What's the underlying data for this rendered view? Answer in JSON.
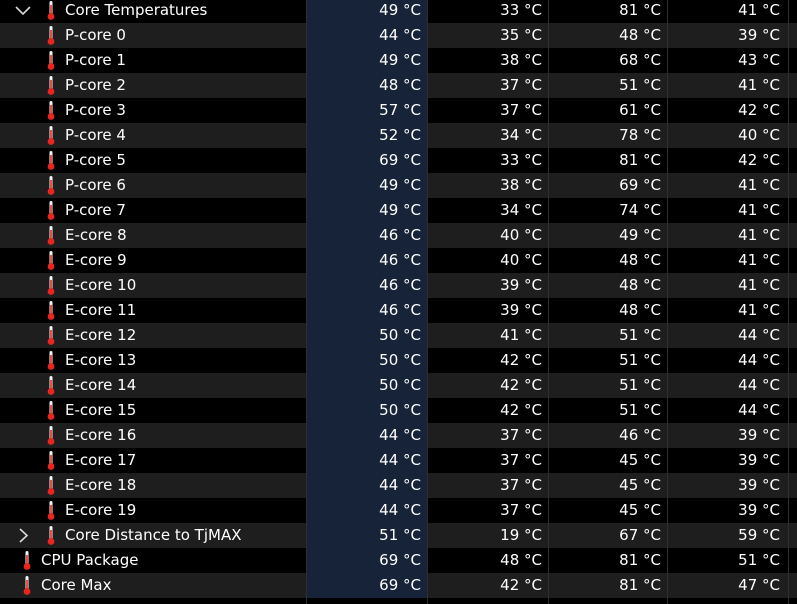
{
  "colors": {
    "row_dark": "#000000",
    "row_light": "#1e1e1e",
    "current_column": "#172338",
    "text": "#ffffff",
    "thermometer": "#e8251f"
  },
  "rows": [
    {
      "label": "Core Temperatures",
      "current": "49 °C",
      "min": "33 °C",
      "max": "81 °C",
      "avg": "41 °C",
      "expander": "chevron-down-icon",
      "level": 1
    },
    {
      "label": "P-core 0",
      "current": "44 °C",
      "min": "35 °C",
      "max": "48 °C",
      "avg": "39 °C",
      "level": 2
    },
    {
      "label": "P-core 1",
      "current": "49 °C",
      "min": "38 °C",
      "max": "68 °C",
      "avg": "43 °C",
      "level": 2
    },
    {
      "label": "P-core 2",
      "current": "48 °C",
      "min": "37 °C",
      "max": "51 °C",
      "avg": "41 °C",
      "level": 2
    },
    {
      "label": "P-core 3",
      "current": "57 °C",
      "min": "37 °C",
      "max": "61 °C",
      "avg": "42 °C",
      "level": 2
    },
    {
      "label": "P-core 4",
      "current": "52 °C",
      "min": "34 °C",
      "max": "78 °C",
      "avg": "40 °C",
      "level": 2
    },
    {
      "label": "P-core 5",
      "current": "69 °C",
      "min": "33 °C",
      "max": "81 °C",
      "avg": "42 °C",
      "level": 2
    },
    {
      "label": "P-core 6",
      "current": "49 °C",
      "min": "38 °C",
      "max": "69 °C",
      "avg": "41 °C",
      "level": 2
    },
    {
      "label": "P-core 7",
      "current": "49 °C",
      "min": "34 °C",
      "max": "74 °C",
      "avg": "41 °C",
      "level": 2
    },
    {
      "label": "E-core 8",
      "current": "46 °C",
      "min": "40 °C",
      "max": "49 °C",
      "avg": "41 °C",
      "level": 2
    },
    {
      "label": "E-core 9",
      "current": "46 °C",
      "min": "40 °C",
      "max": "48 °C",
      "avg": "41 °C",
      "level": 2
    },
    {
      "label": "E-core 10",
      "current": "46 °C",
      "min": "39 °C",
      "max": "48 °C",
      "avg": "41 °C",
      "level": 2
    },
    {
      "label": "E-core 11",
      "current": "46 °C",
      "min": "39 °C",
      "max": "48 °C",
      "avg": "41 °C",
      "level": 2
    },
    {
      "label": "E-core 12",
      "current": "50 °C",
      "min": "41 °C",
      "max": "51 °C",
      "avg": "44 °C",
      "level": 2
    },
    {
      "label": "E-core 13",
      "current": "50 °C",
      "min": "42 °C",
      "max": "51 °C",
      "avg": "44 °C",
      "level": 2
    },
    {
      "label": "E-core 14",
      "current": "50 °C",
      "min": "42 °C",
      "max": "51 °C",
      "avg": "44 °C",
      "level": 2
    },
    {
      "label": "E-core 15",
      "current": "50 °C",
      "min": "42 °C",
      "max": "51 °C",
      "avg": "44 °C",
      "level": 2
    },
    {
      "label": "E-core 16",
      "current": "44 °C",
      "min": "37 °C",
      "max": "46 °C",
      "avg": "39 °C",
      "level": 2
    },
    {
      "label": "E-core 17",
      "current": "44 °C",
      "min": "37 °C",
      "max": "45 °C",
      "avg": "39 °C",
      "level": 2
    },
    {
      "label": "E-core 18",
      "current": "44 °C",
      "min": "37 °C",
      "max": "45 °C",
      "avg": "39 °C",
      "level": 2
    },
    {
      "label": "E-core 19",
      "current": "44 °C",
      "min": "37 °C",
      "max": "45 °C",
      "avg": "39 °C",
      "level": 2
    },
    {
      "label": "Core Distance to TjMAX",
      "current": "51 °C",
      "min": "19 °C",
      "max": "67 °C",
      "avg": "59 °C",
      "expander": "chevron-right-icon",
      "level": 1
    },
    {
      "label": "CPU Package",
      "current": "69 °C",
      "min": "48 °C",
      "max": "81 °C",
      "avg": "51 °C",
      "level": 0
    },
    {
      "label": "Core Max",
      "current": "69 °C",
      "min": "42 °C",
      "max": "81 °C",
      "avg": "47 °C",
      "level": 0
    }
  ]
}
